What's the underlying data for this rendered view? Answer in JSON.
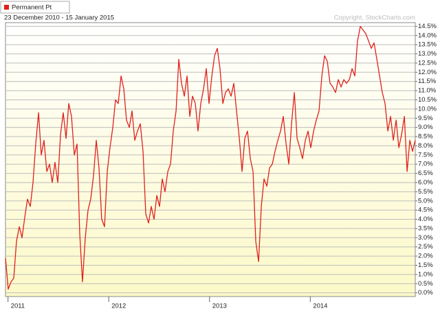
{
  "chart_data": {
    "type": "line",
    "subtitle": "23 December 2010 - 15 January 2015",
    "annotations": [
      "Copyright, StockCharts.com"
    ],
    "legend": "top-left",
    "grid": true,
    "x": [
      2010.975,
      2011.002,
      2011.03,
      2011.057,
      2011.084,
      2011.112,
      2011.139,
      2011.166,
      2011.193,
      2011.221,
      2011.248,
      2011.275,
      2011.303,
      2011.33,
      2011.357,
      2011.385,
      2011.412,
      2011.439,
      2011.466,
      2011.494,
      2011.521,
      2011.548,
      2011.576,
      2011.603,
      2011.63,
      2011.658,
      2011.685,
      2011.712,
      2011.739,
      2011.767,
      2011.794,
      2011.821,
      2011.849,
      2011.876,
      2011.903,
      2011.93,
      2011.958,
      2011.985,
      2012.012,
      2012.04,
      2012.067,
      2012.094,
      2012.122,
      2012.149,
      2012.176,
      2012.204,
      2012.231,
      2012.258,
      2012.285,
      2012.313,
      2012.34,
      2012.367,
      2012.395,
      2012.422,
      2012.449,
      2012.477,
      2012.504,
      2012.531,
      2012.558,
      2012.586,
      2012.613,
      2012.64,
      2012.668,
      2012.695,
      2012.722,
      2012.75,
      2012.777,
      2012.804,
      2012.831,
      2012.859,
      2012.886,
      2012.913,
      2012.941,
      2012.968,
      2012.995,
      2013.023,
      2013.05,
      2013.077,
      2013.104,
      2013.132,
      2013.159,
      2013.186,
      2013.214,
      2013.241,
      2013.268,
      2013.296,
      2013.323,
      2013.35,
      2013.377,
      2013.405,
      2013.432,
      2013.459,
      2013.487,
      2013.514,
      2013.541,
      2013.569,
      2013.596,
      2013.623,
      2013.65,
      2013.678,
      2013.705,
      2013.732,
      2013.76,
      2013.787,
      2013.814,
      2013.842,
      2013.869,
      2013.896,
      2013.923,
      2013.951,
      2013.978,
      2014.005,
      2014.033,
      2014.06,
      2014.087,
      2014.115,
      2014.142,
      2014.169,
      2014.196,
      2014.224,
      2014.251,
      2014.278,
      2014.306,
      2014.333,
      2014.36,
      2014.388,
      2014.415,
      2014.442,
      2014.469,
      2014.497,
      2014.524,
      2014.551,
      2014.579,
      2014.606,
      2014.633,
      2014.661,
      2014.688,
      2014.715,
      2014.742,
      2014.77,
      2014.797,
      2014.824,
      2014.852,
      2014.879,
      2014.906,
      2014.934,
      2014.961,
      2014.988,
      2015.015,
      2015.042
    ],
    "series": [
      {
        "name": "Permanent Pt",
        "color": "#e0201b",
        "values": [
          1.9,
          0.2,
          0.6,
          0.8,
          2.8,
          3.6,
          3.0,
          4.1,
          5.1,
          4.7,
          6.0,
          8.1,
          9.8,
          7.5,
          8.3,
          6.6,
          7.0,
          6.0,
          7.1,
          6.0,
          8.6,
          9.8,
          8.4,
          10.3,
          9.6,
          7.5,
          8.1,
          3.2,
          0.6,
          3.0,
          4.5,
          5.1,
          6.4,
          8.3,
          6.8,
          4.0,
          3.6,
          6.6,
          7.9,
          9.0,
          10.5,
          10.3,
          11.8,
          11.1,
          9.4,
          9.0,
          9.9,
          8.3,
          8.8,
          9.2,
          7.7,
          4.3,
          3.8,
          4.7,
          4.0,
          5.3,
          4.7,
          6.2,
          5.5,
          6.6,
          7.0,
          8.8,
          9.9,
          12.7,
          11.4,
          10.7,
          11.8,
          9.6,
          10.7,
          10.3,
          8.8,
          10.3,
          11.1,
          12.2,
          10.3,
          11.8,
          12.9,
          13.3,
          12.2,
          10.3,
          10.9,
          11.1,
          10.7,
          11.4,
          9.9,
          8.4,
          6.6,
          8.4,
          8.8,
          7.3,
          6.6,
          2.8,
          1.7,
          4.7,
          6.2,
          5.8,
          6.8,
          7.0,
          7.7,
          8.3,
          8.8,
          9.6,
          8.1,
          7.0,
          9.2,
          10.9,
          8.4,
          7.9,
          7.3,
          8.3,
          8.8,
          7.9,
          8.8,
          9.4,
          9.9,
          11.8,
          12.9,
          12.6,
          11.4,
          11.2,
          10.9,
          11.6,
          11.2,
          11.6,
          11.4,
          11.6,
          12.2,
          11.8,
          13.7,
          14.5,
          14.3,
          14.1,
          13.7,
          13.3,
          13.6,
          12.7,
          11.8,
          10.9,
          10.3,
          8.8,
          9.6,
          8.3,
          9.4,
          7.9,
          8.6,
          9.6,
          6.6,
          8.3,
          7.7,
          8.3
        ]
      }
    ],
    "xlim": [
      2010.975,
      2015.042
    ],
    "xticks": [
      2011,
      2012,
      2013,
      2014
    ],
    "ylim": [
      -0.2,
      14.7
    ],
    "yticks": [
      {
        "value": 0,
        "label": "0.0%"
      },
      {
        "value": 0.5,
        "label": "0.5%"
      },
      {
        "value": 1,
        "label": "1.0%"
      },
      {
        "value": 1.5,
        "label": "1.5%"
      },
      {
        "value": 2,
        "label": "2.0%"
      },
      {
        "value": 2.5,
        "label": "2.5%"
      },
      {
        "value": 3,
        "label": "3.0%"
      },
      {
        "value": 3.5,
        "label": "3.5%"
      },
      {
        "value": 4,
        "label": "4.0%"
      },
      {
        "value": 4.5,
        "label": "4.5%"
      },
      {
        "value": 5,
        "label": "5.0%"
      },
      {
        "value": 5.5,
        "label": "5.5%"
      },
      {
        "value": 6,
        "label": "6.0%"
      },
      {
        "value": 6.5,
        "label": "6.5%"
      },
      {
        "value": 7,
        "label": "7.0%"
      },
      {
        "value": 7.5,
        "label": "7.5%"
      },
      {
        "value": 8,
        "label": "8.0%"
      },
      {
        "value": 8.5,
        "label": "8.5%"
      },
      {
        "value": 9,
        "label": "9.0%"
      },
      {
        "value": 9.5,
        "label": "9.5%"
      },
      {
        "value": 10,
        "label": "10.0%"
      },
      {
        "value": 10.5,
        "label": "10.5%"
      },
      {
        "value": 11,
        "label": "11.0%"
      },
      {
        "value": 11.5,
        "label": "11.5%"
      },
      {
        "value": 12,
        "label": "12.0%"
      },
      {
        "value": 12.5,
        "label": "12.5%"
      },
      {
        "value": 13,
        "label": "13.0%"
      },
      {
        "value": 13.5,
        "label": "13.5%"
      },
      {
        "value": 14,
        "label": "14.0%"
      },
      {
        "value": 14.5,
        "label": "14.5%"
      }
    ]
  }
}
